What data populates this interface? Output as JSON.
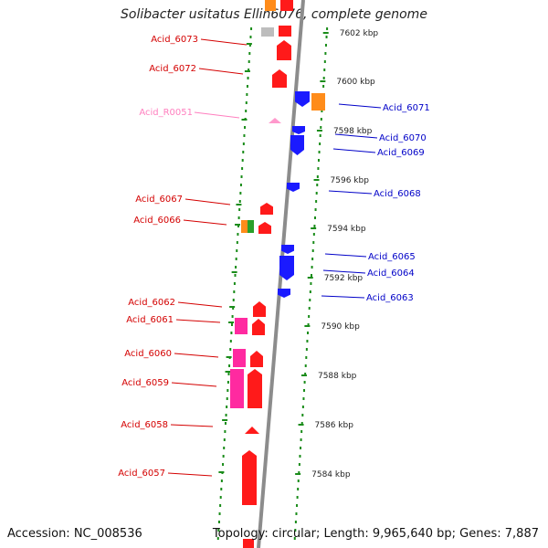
{
  "title": "Solibacter usitatus Ellin6076, complete genome",
  "footer": {
    "accession": "Accession: NC_008536",
    "summary": "Topology: circular; Length: 9,965,640 bp; Genes: 7,887"
  },
  "colors": {
    "backbone": "#8c8c8c",
    "forward_strand_label": "#d40000",
    "reverse_strand_label": "#0000c8",
    "rna_label": "#ff7fbf",
    "ruler_tick": "#1a8c1a",
    "gene_red": "#ff1a1a",
    "gene_blue": "#1a1aff",
    "gene_magenta": "#ff2aa0",
    "gene_orange": "#ff8c1a",
    "gene_green": "#2aa02a",
    "gene_gray": "#bdbdbd",
    "rna_pink": "#ff99cc"
  },
  "scale_labels": [
    "7602 kbp",
    "7600 kbp",
    "7598 kbp",
    "7596 kbp",
    "7594 kbp",
    "7592 kbp",
    "7590 kbp",
    "7588 kbp",
    "7586 kbp",
    "7584 kbp"
  ],
  "forward_genes": [
    "Acid_6073",
    "Acid_6072",
    "Acid_6067",
    "Acid_6066",
    "Acid_6062",
    "Acid_6061",
    "Acid_6060",
    "Acid_6059",
    "Acid_6058",
    "Acid_6057"
  ],
  "rna_genes": [
    "Acid_R0051"
  ],
  "reverse_genes": [
    "Acid_6071",
    "Acid_6070",
    "Acid_6069",
    "Acid_6068",
    "Acid_6065",
    "Acid_6064",
    "Acid_6063"
  ]
}
